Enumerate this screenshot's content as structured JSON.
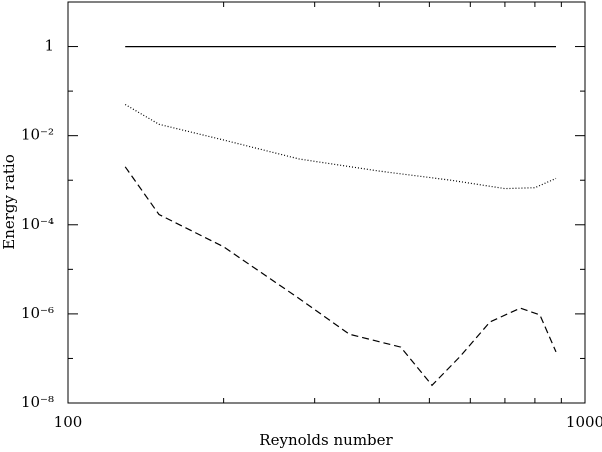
{
  "chart_data": {
    "type": "line",
    "xlabel": "Reynolds number",
    "ylabel": "Energy ratio",
    "xscale": "log",
    "yscale": "log",
    "xlim": [
      100,
      1000
    ],
    "ylim": [
      1e-08,
      10
    ],
    "xticks": [
      100,
      1000
    ],
    "xminor": [
      200,
      300,
      400,
      500,
      600,
      700,
      800,
      900
    ],
    "yticks": [
      {
        "value": 1e-08,
        "label": "10⁻⁸"
      },
      {
        "value": 1e-06,
        "label": "10⁻⁶"
      },
      {
        "value": 0.0001,
        "label": "10⁻⁴"
      },
      {
        "value": 0.01,
        "label": "10⁻²"
      },
      1
    ],
    "yminor": [
      1e-07,
      1e-05,
      0.001,
      0.1
    ],
    "series": [
      {
        "color": "#000000",
        "dash": "solid",
        "x": [
          129,
          879
        ],
        "values": [
          1,
          1
        ]
      },
      {
        "color": "#000000",
        "dash": "dotted",
        "x": [
          129,
          150,
          200,
          280,
          400,
          550,
          700,
          800,
          879
        ],
        "values": [
          0.05,
          0.018,
          0.008,
          0.003,
          0.0016,
          0.001,
          0.00065,
          0.00068,
          0.0011
        ]
      },
      {
        "color": "#000000",
        "dash": "dashed",
        "x": [
          129,
          150,
          200,
          280,
          350,
          440,
          506,
          573,
          655,
          750,
          818,
          879
        ],
        "values": [
          0.002,
          0.00017,
          3.2e-05,
          2.2e-06,
          3.5e-07,
          1.8e-07,
          2.5e-08,
          1.1e-07,
          6.6e-07,
          1.35e-06,
          9.5e-07,
          1.4e-07
        ]
      }
    ]
  }
}
